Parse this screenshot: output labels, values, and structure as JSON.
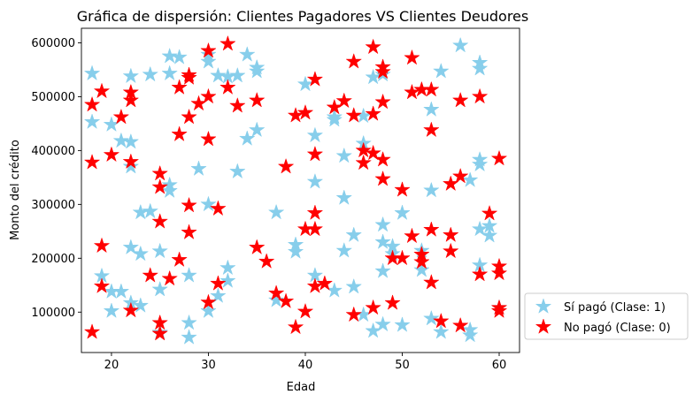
{
  "chart_data": {
    "type": "scatter",
    "title": "Gráfica de dispersión: Clientes Pagadores VS Clientes Deudores",
    "xlabel": "Edad",
    "ylabel": "Monto del crédito",
    "xlim": [
      16.9,
      62.1
    ],
    "ylim": [
      25000,
      627000
    ],
    "xticks": [
      20,
      30,
      40,
      50,
      60
    ],
    "yticks": [
      100000,
      200000,
      300000,
      400000,
      500000,
      600000
    ],
    "xtick_labels": [
      "20",
      "30",
      "40",
      "50",
      "60"
    ],
    "ytick_labels": [
      "100000",
      "200000",
      "300000",
      "400000",
      "500000",
      "600000"
    ],
    "marker": "star",
    "legend_position": "outside-lower-right",
    "series": [
      {
        "name": "Sí pagó (Clase: 1)",
        "color": "#87ceeb",
        "points": [
          [
            18,
            543000
          ],
          [
            18,
            453000
          ],
          [
            19,
            167000
          ],
          [
            20,
            448000
          ],
          [
            20,
            102000
          ],
          [
            20,
            138000
          ],
          [
            21,
            418000
          ],
          [
            21,
            138000
          ],
          [
            22,
            538000
          ],
          [
            22,
            416000
          ],
          [
            22,
            370000
          ],
          [
            22,
            220000
          ],
          [
            22,
            117000
          ],
          [
            23,
            285000
          ],
          [
            23,
            208000
          ],
          [
            23,
            112000
          ],
          [
            24,
            541000
          ],
          [
            24,
            287000
          ],
          [
            25,
            213000
          ],
          [
            25,
            142000
          ],
          [
            25,
            62000
          ],
          [
            26,
            575000
          ],
          [
            26,
            543000
          ],
          [
            26,
            336000
          ],
          [
            26,
            325000
          ],
          [
            27,
            573000
          ],
          [
            28,
            168000
          ],
          [
            28,
            80000
          ],
          [
            28,
            53000
          ],
          [
            29,
            366000
          ],
          [
            30,
            578000
          ],
          [
            30,
            565000
          ],
          [
            30,
            300000
          ],
          [
            30,
            102000
          ],
          [
            31,
            539000
          ],
          [
            31,
            130000
          ],
          [
            32,
            537000
          ],
          [
            32,
            182000
          ],
          [
            32,
            158000
          ],
          [
            33,
            539000
          ],
          [
            33,
            361000
          ],
          [
            34,
            578000
          ],
          [
            34,
            422000
          ],
          [
            35,
            554000
          ],
          [
            35,
            547000
          ],
          [
            35,
            438000
          ],
          [
            37,
            285000
          ],
          [
            37,
            122000
          ],
          [
            39,
            225000
          ],
          [
            39,
            212000
          ],
          [
            40,
            523000
          ],
          [
            41,
            428000
          ],
          [
            41,
            342000
          ],
          [
            41,
            168000
          ],
          [
            43,
            462000
          ],
          [
            43,
            457000
          ],
          [
            43,
            140000
          ],
          [
            44,
            390000
          ],
          [
            44,
            312000
          ],
          [
            44,
            214000
          ],
          [
            45,
            243000
          ],
          [
            45,
            147000
          ],
          [
            46,
            464000
          ],
          [
            46,
            413000
          ],
          [
            46,
            95000
          ],
          [
            47,
            536000
          ],
          [
            47,
            65000
          ],
          [
            48,
            541000
          ],
          [
            48,
            262000
          ],
          [
            48,
            230000
          ],
          [
            48,
            176000
          ],
          [
            48,
            77000
          ],
          [
            49,
            222000
          ],
          [
            49,
            208000
          ],
          [
            50,
            284000
          ],
          [
            50,
            76000
          ],
          [
            52,
            214000
          ],
          [
            52,
            178000
          ],
          [
            53,
            476000
          ],
          [
            53,
            326000
          ],
          [
            53,
            88000
          ],
          [
            54,
            547000
          ],
          [
            54,
            63000
          ],
          [
            56,
            595000
          ],
          [
            57,
            345000
          ],
          [
            57,
            67000
          ],
          [
            57,
            57000
          ],
          [
            58,
            563000
          ],
          [
            58,
            552000
          ],
          [
            58,
            383000
          ],
          [
            58,
            374000
          ],
          [
            58,
            254000
          ],
          [
            58,
            187000
          ],
          [
            59,
            260000
          ],
          [
            59,
            242000
          ],
          [
            60,
            108000
          ]
        ]
      },
      {
        "name": "No pagó (Clase: 0)",
        "color": "#ff0000",
        "points": [
          [
            18,
            485000
          ],
          [
            18,
            378000
          ],
          [
            18,
            63000
          ],
          [
            19,
            510000
          ],
          [
            19,
            223000
          ],
          [
            19,
            148000
          ],
          [
            20,
            392000
          ],
          [
            21,
            462000
          ],
          [
            22,
            508000
          ],
          [
            22,
            493000
          ],
          [
            22,
            379000
          ],
          [
            22,
            103000
          ],
          [
            24,
            168000
          ],
          [
            25,
            357000
          ],
          [
            25,
            332000
          ],
          [
            25,
            268000
          ],
          [
            25,
            80000
          ],
          [
            25,
            60000
          ],
          [
            26,
            162000
          ],
          [
            27,
            517000
          ],
          [
            27,
            430000
          ],
          [
            27,
            197000
          ],
          [
            28,
            540000
          ],
          [
            28,
            535000
          ],
          [
            28,
            462000
          ],
          [
            28,
            298000
          ],
          [
            28,
            248000
          ],
          [
            29,
            487000
          ],
          [
            30,
            585000
          ],
          [
            30,
            500000
          ],
          [
            30,
            421000
          ],
          [
            30,
            118000
          ],
          [
            31,
            292000
          ],
          [
            31,
            153000
          ],
          [
            32,
            598000
          ],
          [
            32,
            517000
          ],
          [
            33,
            483000
          ],
          [
            35,
            493000
          ],
          [
            35,
            220000
          ],
          [
            36,
            194000
          ],
          [
            37,
            135000
          ],
          [
            38,
            370000
          ],
          [
            38,
            120000
          ],
          [
            39,
            465000
          ],
          [
            39,
            72000
          ],
          [
            40,
            470000
          ],
          [
            40,
            254000
          ],
          [
            40,
            101000
          ],
          [
            41,
            532000
          ],
          [
            41,
            393000
          ],
          [
            41,
            284000
          ],
          [
            41,
            254000
          ],
          [
            41,
            148000
          ],
          [
            42,
            153000
          ],
          [
            43,
            480000
          ],
          [
            44,
            492000
          ],
          [
            45,
            565000
          ],
          [
            45,
            465000
          ],
          [
            45,
            95000
          ],
          [
            46,
            400000
          ],
          [
            46,
            377000
          ],
          [
            47,
            592000
          ],
          [
            47,
            468000
          ],
          [
            47,
            395000
          ],
          [
            47,
            108000
          ],
          [
            48,
            555000
          ],
          [
            48,
            546000
          ],
          [
            48,
            490000
          ],
          [
            48,
            383000
          ],
          [
            48,
            347000
          ],
          [
            49,
            200000
          ],
          [
            49,
            117000
          ],
          [
            50,
            327000
          ],
          [
            50,
            200000
          ],
          [
            51,
            572000
          ],
          [
            51,
            508000
          ],
          [
            51,
            241000
          ],
          [
            52,
            513000
          ],
          [
            52,
            207000
          ],
          [
            52,
            193000
          ],
          [
            53,
            513000
          ],
          [
            53,
            438000
          ],
          [
            53,
            253000
          ],
          [
            53,
            155000
          ],
          [
            54,
            83000
          ],
          [
            55,
            338000
          ],
          [
            55,
            243000
          ],
          [
            55,
            213000
          ],
          [
            56,
            493000
          ],
          [
            56,
            352000
          ],
          [
            56,
            75000
          ],
          [
            58,
            500000
          ],
          [
            58,
            170000
          ],
          [
            59,
            283000
          ],
          [
            60,
            385000
          ],
          [
            60,
            185000
          ],
          [
            60,
            172000
          ],
          [
            60,
            108000
          ],
          [
            60,
            102000
          ]
        ]
      }
    ]
  }
}
